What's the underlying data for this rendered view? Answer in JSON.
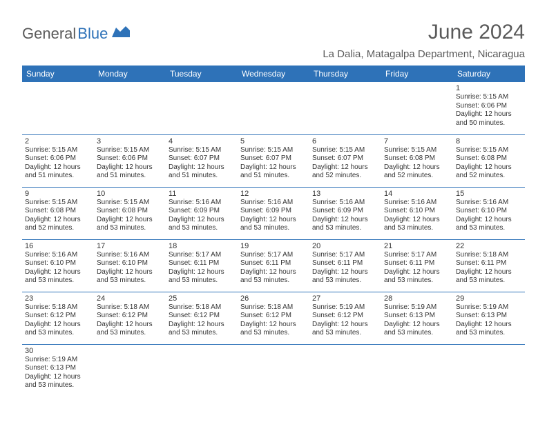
{
  "logo": {
    "part1": "General",
    "part2": "Blue"
  },
  "title": "June 2024",
  "location": "La Dalia, Matagalpa Department, Nicaragua",
  "colors": {
    "header_bg": "#2e72b8",
    "header_text": "#ffffff",
    "border": "#2e72b8",
    "text": "#333333",
    "title_text": "#5a5a5a"
  },
  "dayHeaders": [
    "Sunday",
    "Monday",
    "Tuesday",
    "Wednesday",
    "Thursday",
    "Friday",
    "Saturday"
  ],
  "weeks": [
    [
      null,
      null,
      null,
      null,
      null,
      null,
      {
        "n": "1",
        "sr": "5:15 AM",
        "ss": "6:06 PM",
        "dl": "12 hours and 50 minutes."
      }
    ],
    [
      {
        "n": "2",
        "sr": "5:15 AM",
        "ss": "6:06 PM",
        "dl": "12 hours and 51 minutes."
      },
      {
        "n": "3",
        "sr": "5:15 AM",
        "ss": "6:06 PM",
        "dl": "12 hours and 51 minutes."
      },
      {
        "n": "4",
        "sr": "5:15 AM",
        "ss": "6:07 PM",
        "dl": "12 hours and 51 minutes."
      },
      {
        "n": "5",
        "sr": "5:15 AM",
        "ss": "6:07 PM",
        "dl": "12 hours and 51 minutes."
      },
      {
        "n": "6",
        "sr": "5:15 AM",
        "ss": "6:07 PM",
        "dl": "12 hours and 52 minutes."
      },
      {
        "n": "7",
        "sr": "5:15 AM",
        "ss": "6:08 PM",
        "dl": "12 hours and 52 minutes."
      },
      {
        "n": "8",
        "sr": "5:15 AM",
        "ss": "6:08 PM",
        "dl": "12 hours and 52 minutes."
      }
    ],
    [
      {
        "n": "9",
        "sr": "5:15 AM",
        "ss": "6:08 PM",
        "dl": "12 hours and 52 minutes."
      },
      {
        "n": "10",
        "sr": "5:15 AM",
        "ss": "6:08 PM",
        "dl": "12 hours and 53 minutes."
      },
      {
        "n": "11",
        "sr": "5:16 AM",
        "ss": "6:09 PM",
        "dl": "12 hours and 53 minutes."
      },
      {
        "n": "12",
        "sr": "5:16 AM",
        "ss": "6:09 PM",
        "dl": "12 hours and 53 minutes."
      },
      {
        "n": "13",
        "sr": "5:16 AM",
        "ss": "6:09 PM",
        "dl": "12 hours and 53 minutes."
      },
      {
        "n": "14",
        "sr": "5:16 AM",
        "ss": "6:10 PM",
        "dl": "12 hours and 53 minutes."
      },
      {
        "n": "15",
        "sr": "5:16 AM",
        "ss": "6:10 PM",
        "dl": "12 hours and 53 minutes."
      }
    ],
    [
      {
        "n": "16",
        "sr": "5:16 AM",
        "ss": "6:10 PM",
        "dl": "12 hours and 53 minutes."
      },
      {
        "n": "17",
        "sr": "5:16 AM",
        "ss": "6:10 PM",
        "dl": "12 hours and 53 minutes."
      },
      {
        "n": "18",
        "sr": "5:17 AM",
        "ss": "6:11 PM",
        "dl": "12 hours and 53 minutes."
      },
      {
        "n": "19",
        "sr": "5:17 AM",
        "ss": "6:11 PM",
        "dl": "12 hours and 53 minutes."
      },
      {
        "n": "20",
        "sr": "5:17 AM",
        "ss": "6:11 PM",
        "dl": "12 hours and 53 minutes."
      },
      {
        "n": "21",
        "sr": "5:17 AM",
        "ss": "6:11 PM",
        "dl": "12 hours and 53 minutes."
      },
      {
        "n": "22",
        "sr": "5:18 AM",
        "ss": "6:11 PM",
        "dl": "12 hours and 53 minutes."
      }
    ],
    [
      {
        "n": "23",
        "sr": "5:18 AM",
        "ss": "6:12 PM",
        "dl": "12 hours and 53 minutes."
      },
      {
        "n": "24",
        "sr": "5:18 AM",
        "ss": "6:12 PM",
        "dl": "12 hours and 53 minutes."
      },
      {
        "n": "25",
        "sr": "5:18 AM",
        "ss": "6:12 PM",
        "dl": "12 hours and 53 minutes."
      },
      {
        "n": "26",
        "sr": "5:18 AM",
        "ss": "6:12 PM",
        "dl": "12 hours and 53 minutes."
      },
      {
        "n": "27",
        "sr": "5:19 AM",
        "ss": "6:12 PM",
        "dl": "12 hours and 53 minutes."
      },
      {
        "n": "28",
        "sr": "5:19 AM",
        "ss": "6:13 PM",
        "dl": "12 hours and 53 minutes."
      },
      {
        "n": "29",
        "sr": "5:19 AM",
        "ss": "6:13 PM",
        "dl": "12 hours and 53 minutes."
      }
    ],
    [
      {
        "n": "30",
        "sr": "5:19 AM",
        "ss": "6:13 PM",
        "dl": "12 hours and 53 minutes."
      },
      null,
      null,
      null,
      null,
      null,
      null
    ]
  ],
  "labels": {
    "sunrise": "Sunrise:",
    "sunset": "Sunset:",
    "daylight": "Daylight:"
  }
}
